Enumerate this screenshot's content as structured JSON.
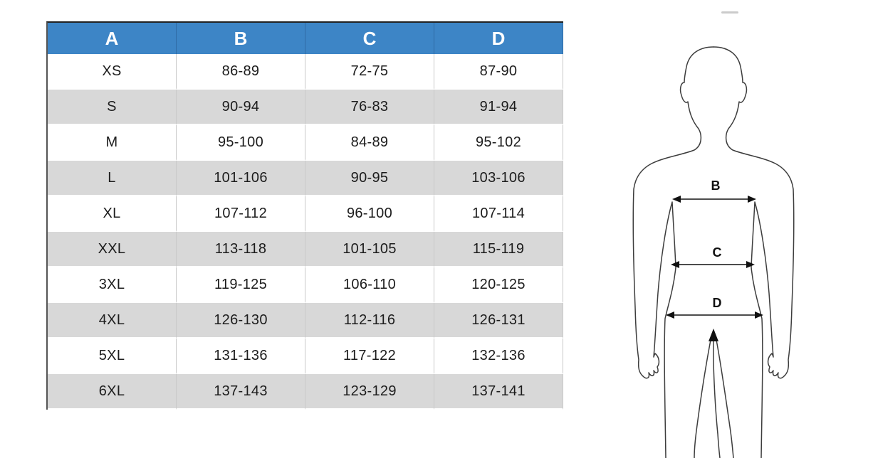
{
  "size_chart": {
    "headers": [
      "A",
      "B",
      "C",
      "D"
    ],
    "rows": [
      [
        "XS",
        "86-89",
        "72-75",
        "87-90"
      ],
      [
        "S",
        "90-94",
        "76-83",
        "91-94"
      ],
      [
        "M",
        "95-100",
        "84-89",
        "95-102"
      ],
      [
        "L",
        "101-106",
        "90-95",
        "103-106"
      ],
      [
        "XL",
        "107-112",
        "96-100",
        "107-114"
      ],
      [
        "XXL",
        "113-118",
        "101-105",
        "115-119"
      ],
      [
        "3XL",
        "119-125",
        "106-110",
        "120-125"
      ],
      [
        "4XL",
        "126-130",
        "112-116",
        "126-131"
      ],
      [
        "5XL",
        "131-136",
        "117-122",
        "132-136"
      ],
      [
        "6XL",
        "137-143",
        "123-129",
        "137-141"
      ]
    ]
  },
  "figure": {
    "chest_label": "B",
    "waist_label": "C",
    "hip_label": "D"
  },
  "colors": {
    "header_bg": "#3d85c6",
    "header_text": "#ffffff",
    "stripe_row_bg": "#d8d8d8",
    "body_text": "#1c1c1c",
    "figure_stroke": "#3d3d3d"
  }
}
